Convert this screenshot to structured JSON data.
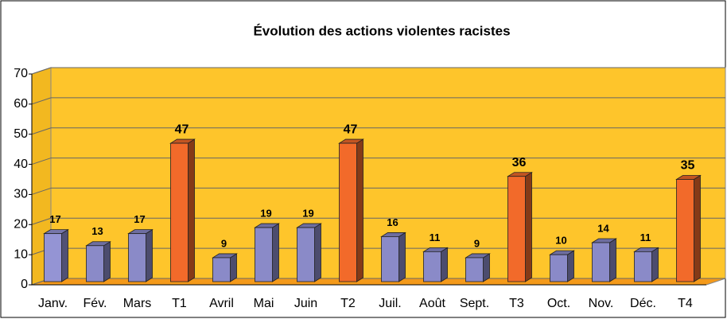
{
  "chart_data": {
    "type": "bar3d",
    "title": "Évolution des actions violentes racistes",
    "categories": [
      "Janv.",
      "Fév.",
      "Mars",
      "T1",
      "Avril",
      "Mai",
      "Juin",
      "T2",
      "Juil.",
      "Août",
      "Sept.",
      "T3",
      "Oct.",
      "Nov.",
      "Déc.",
      "T4"
    ],
    "values": [
      17,
      13,
      17,
      47,
      9,
      19,
      19,
      47,
      16,
      11,
      9,
      36,
      10,
      14,
      11,
      35
    ],
    "colors": [
      "#9494d4",
      "#8a8ac8",
      "#8a8ac8",
      "#f26a2a",
      "#8a8ac8",
      "#8a8ac8",
      "#8a8ac8",
      "#f26a2a",
      "#8a8ac8",
      "#8a8ac8",
      "#8a8ac8",
      "#f26a2a",
      "#8a8ac8",
      "#8a8ac8",
      "#8a8ac8",
      "#f26a2a"
    ],
    "ylim": [
      0,
      70
    ],
    "yticks": [
      0,
      10,
      20,
      30,
      40,
      50,
      60,
      70
    ],
    "grid": true
  }
}
